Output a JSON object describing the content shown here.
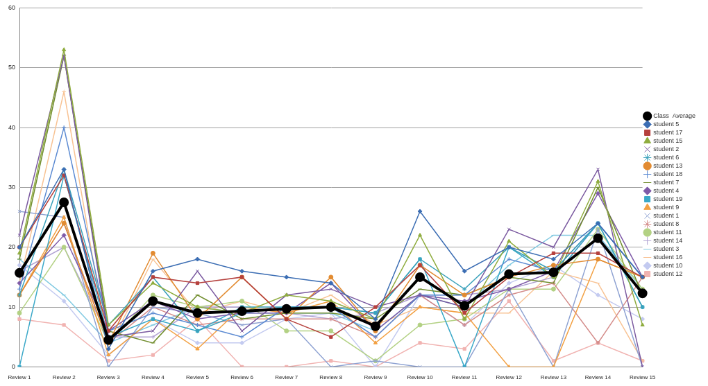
{
  "chart_data": {
    "type": "line",
    "categories": [
      "Review 1",
      "Review 2",
      "Review 3",
      "Review 4",
      "Review 5",
      "Review 6",
      "Review 7",
      "Review 8",
      "Review 9",
      "Review 10",
      "Review 11",
      "Review 12",
      "Review 13",
      "Review 14",
      "Review 15"
    ],
    "ylim": [
      0,
      60
    ],
    "yticks": [
      0,
      10,
      20,
      30,
      40,
      50,
      60
    ],
    "grid": true,
    "legend": "right",
    "series": [
      {
        "name": "student 5",
        "color": "#3b6db3",
        "marker": "diamond",
        "line_style": "solid",
        "values": [
          20,
          33,
          3,
          16,
          18,
          16,
          15,
          14,
          8,
          26,
          16,
          20,
          18,
          24,
          15
        ]
      },
      {
        "name": "student 17",
        "color": "#b5403d",
        "marker": "square",
        "line_style": "solid",
        "values": [
          20,
          32,
          6,
          15,
          14,
          15,
          8,
          5,
          10,
          17,
          9,
          15,
          19,
          19,
          15
        ]
      },
      {
        "name": "student 15",
        "color": "#8fac3e",
        "marker": "triangle",
        "line_style": "solid",
        "values": [
          19,
          53,
          7,
          14,
          10,
          9,
          12,
          11,
          8,
          22,
          8,
          21,
          15,
          31,
          7
        ]
      },
      {
        "name": "student 2",
        "color": "#7b5aa0",
        "marker": "x",
        "line_style": "solid",
        "values": [
          22,
          52,
          5,
          6,
          16,
          6,
          12,
          13,
          10,
          12,
          10,
          23,
          20,
          33,
          0
        ]
      },
      {
        "name": "student 6",
        "color": "#3ba2bb",
        "marker": "star",
        "line_style": "solid",
        "values": [
          12,
          33,
          7,
          15,
          6,
          9,
          10,
          10,
          9,
          18,
          13,
          20,
          16,
          24,
          10
        ]
      },
      {
        "name": "student 13",
        "color": "#e28b31",
        "marker": "circle",
        "line_style": "solid",
        "values": [
          12,
          24,
          4,
          19,
          8,
          15,
          8,
          15,
          6,
          17,
          12,
          15,
          17,
          18,
          15
        ]
      },
      {
        "name": "student 18",
        "color": "#5b8ad2",
        "marker": "plus",
        "line_style": "solid",
        "values": [
          13,
          40,
          6,
          9,
          7,
          5,
          10,
          10,
          5,
          12,
          12,
          18,
          16,
          24,
          15
        ]
      },
      {
        "name": "Class  Average",
        "color": "#000000",
        "marker": "circle",
        "line_style": "thick",
        "values": [
          15.7,
          27.5,
          4.5,
          11,
          9,
          9.3,
          9.7,
          10,
          6.8,
          15,
          10.2,
          15.5,
          15.8,
          21.5,
          12.3
        ]
      },
      {
        "name": "student 7",
        "color": "#6f8c2b",
        "marker": "line",
        "line_style": "solid",
        "values": [
          18,
          52,
          6,
          4,
          12,
          8,
          9,
          9,
          8,
          13,
          12,
          15,
          14,
          30,
          12
        ]
      },
      {
        "name": "student 4",
        "color": "#7e5aa8",
        "marker": "diamond",
        "line_style": "solid",
        "values": [
          14,
          22,
          6,
          11,
          8,
          9,
          9,
          14,
          6,
          12,
          11,
          13,
          16,
          29,
          15
        ]
      },
      {
        "name": "student 19",
        "color": "#3aa8c8",
        "marker": "square",
        "line_style": "solid",
        "values": [
          0,
          32,
          5,
          8,
          6,
          10,
          10,
          10,
          9,
          18,
          0,
          20,
          15,
          24,
          10
        ]
      },
      {
        "name": "student 9",
        "color": "#f2a144",
        "marker": "triangle",
        "line_style": "solid",
        "values": [
          12,
          25,
          2,
          8,
          3,
          10,
          9,
          11,
          4,
          10,
          9,
          0,
          0,
          18,
          15
        ]
      },
      {
        "name": "student 1",
        "color": "#8ea2d2",
        "marker": "x",
        "line_style": "solid",
        "values": [
          26,
          25,
          0,
          10,
          9,
          7,
          8,
          0,
          1,
          0,
          0,
          13,
          0,
          23,
          0
        ]
      },
      {
        "name": "student 8",
        "color": "#d48c8a",
        "marker": "star",
        "line_style": "solid",
        "values": [
          12,
          24,
          4,
          10,
          7,
          8,
          8,
          8,
          5,
          12,
          7,
          12,
          14,
          4,
          15
        ]
      },
      {
        "name": "student 11",
        "color": "#b3d184",
        "marker": "circle",
        "line_style": "solid",
        "values": [
          9,
          20,
          4,
          12,
          10,
          11,
          6,
          6,
          1,
          7,
          8,
          13,
          13,
          23,
          13
        ]
      },
      {
        "name": "student 14",
        "color": "#b2a3d3",
        "marker": "plus",
        "line_style": "solid",
        "values": [
          16,
          20,
          5,
          5,
          10,
          10,
          9,
          8,
          9,
          12,
          12,
          13,
          15,
          24,
          15
        ]
      },
      {
        "name": "student 3",
        "color": "#82cae2",
        "marker": "line",
        "line_style": "solid",
        "values": [
          18,
          12,
          4,
          7,
          10,
          9,
          9,
          9,
          6,
          12,
          10,
          17,
          22,
          22,
          13
        ]
      },
      {
        "name": "student 16",
        "color": "#f8c394",
        "marker": "line",
        "line_style": "solid",
        "values": [
          14,
          46,
          3,
          18,
          9,
          11,
          9,
          12,
          7,
          10,
          9,
          9,
          16,
          14,
          1
        ]
      },
      {
        "name": "student 10",
        "color": "#c3caf0",
        "marker": "diamond",
        "line_style": "solid",
        "values": [
          17,
          11,
          2,
          8,
          4,
          4,
          8,
          9,
          0,
          12,
          7,
          14,
          17,
          12,
          8
        ]
      },
      {
        "name": "student 12",
        "color": "#f1b3b1",
        "marker": "square",
        "line_style": "solid",
        "values": [
          8,
          7,
          1,
          2,
          8,
          0,
          0,
          1,
          0,
          4,
          3,
          11,
          1,
          4,
          1
        ]
      }
    ]
  }
}
